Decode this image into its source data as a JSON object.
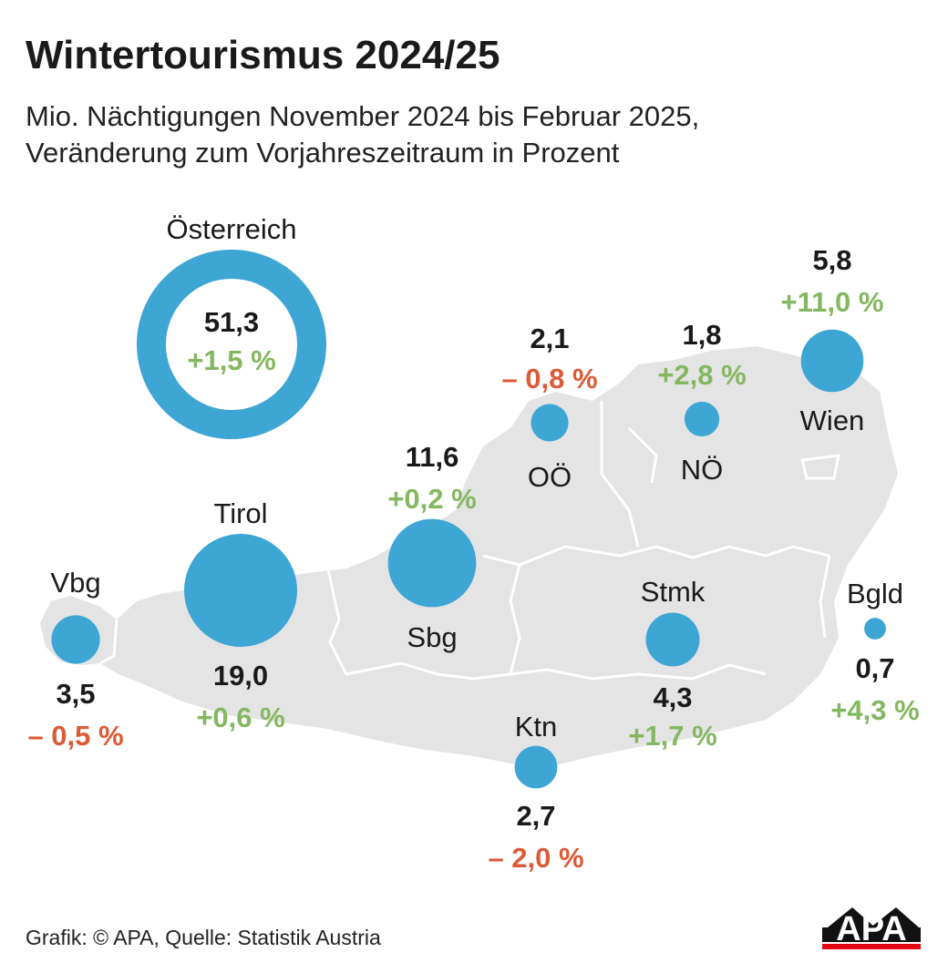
{
  "title": "Wintertourismus 2024/25",
  "subtitle_line1": "Mio. Nächtigungen November 2024 bis Februar 2025,",
  "subtitle_line2": "Veränderung zum Vorjahreszeitraum in Prozent",
  "colors": {
    "bubble": "#3ea6d5",
    "map": "#e4e4e4",
    "positive": "#84b860",
    "negative": "#dd5a36"
  },
  "austria": {
    "name": "Österreich",
    "value": "51,3",
    "change": "+1,5 %",
    "value_num": 51.3,
    "change_num": 1.5
  },
  "regions": [
    {
      "id": "vbg",
      "name": "Vbg",
      "value": "3,5",
      "change": "– 0,5 %",
      "value_num": 3.5,
      "change_num": -0.5
    },
    {
      "id": "tirol",
      "name": "Tirol",
      "value": "19,0",
      "change": "+0,6 %",
      "value_num": 19.0,
      "change_num": 0.6
    },
    {
      "id": "sbg",
      "name": "Sbg",
      "value": "11,6",
      "change": "+0,2 %",
      "value_num": 11.6,
      "change_num": 0.2
    },
    {
      "id": "ooe",
      "name": "OÖ",
      "value": "2,1",
      "change": "– 0,8 %",
      "value_num": 2.1,
      "change_num": -0.8
    },
    {
      "id": "noe",
      "name": "NÖ",
      "value": "1,8",
      "change": "+2,8 %",
      "value_num": 1.8,
      "change_num": 2.8
    },
    {
      "id": "wien",
      "name": "Wien",
      "value": "5,8",
      "change": "+11,0 %",
      "value_num": 5.8,
      "change_num": 11.0
    },
    {
      "id": "stmk",
      "name": "Stmk",
      "value": "4,3",
      "change": "+1,7 %",
      "value_num": 4.3,
      "change_num": 1.7
    },
    {
      "id": "ktn",
      "name": "Ktn",
      "value": "2,7",
      "change": "– 2,0 %",
      "value_num": 2.7,
      "change_num": -2.0
    },
    {
      "id": "bgld",
      "name": "Bgld",
      "value": "0,7",
      "change": "+4,3 %",
      "value_num": 0.7,
      "change_num": 4.3
    }
  ],
  "footer": "Grafik: © APA, Quelle: Statistik Austria",
  "logo_text": "APA"
}
